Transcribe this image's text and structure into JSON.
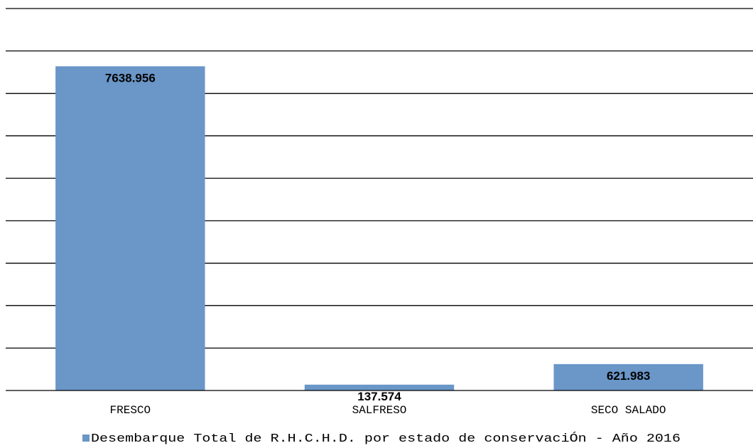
{
  "chart_data": {
    "type": "bar",
    "categories": [
      "FRESCO",
      "SALFRESO",
      "SECO SALADO"
    ],
    "series": [
      {
        "name": "Desembarque Total de R.H.C.H.D. por estado de conservaciÓn - Año 2016",
        "values": [
          7638.956,
          137.574,
          621.983
        ]
      }
    ],
    "data_labels": [
      "7638.956",
      "137.574",
      "621.983"
    ],
    "ylim": [
      0,
      9000
    ],
    "grid": true,
    "legend_position": "bottom",
    "bar_color": "#6a96c8"
  }
}
